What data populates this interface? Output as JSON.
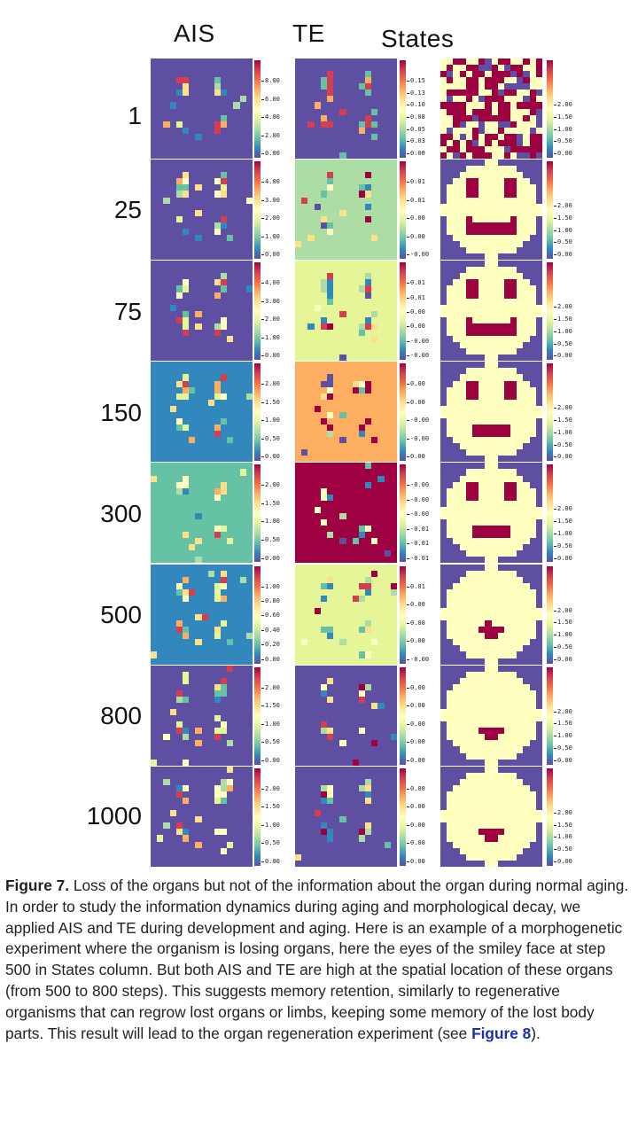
{
  "figure": {
    "column_headers": [
      "AIS",
      "TE",
      "States"
    ],
    "rows": [
      {
        "step": "1",
        "ais_ticks": [
          "8.00",
          "6.00",
          "4.00",
          "2.00",
          "0.00"
        ],
        "te_ticks": [
          "0.15",
          "0.13",
          "0.10",
          "0.08",
          "0.05",
          "0.03",
          "0.00"
        ],
        "states_ticks": [
          "2.00",
          "1.50",
          "1.00",
          "0.50",
          "0.00"
        ]
      },
      {
        "step": "25",
        "ais_ticks": [
          "4.00",
          "3.00",
          "2.00",
          "1.00",
          "0.00"
        ],
        "te_ticks": [
          "0.01",
          "0.01",
          "0.00",
          "0.00",
          "-0.00"
        ],
        "states_ticks": [
          "2.00",
          "1.50",
          "1.00",
          "0.50",
          "0.00"
        ]
      },
      {
        "step": "75",
        "ais_ticks": [
          "4.00",
          "3.00",
          "2.00",
          "1.00",
          "0.00"
        ],
        "te_ticks": [
          "0.01",
          "0.01",
          "0.00",
          "0.00",
          "-0.00",
          "-0.00"
        ],
        "states_ticks": [
          "2.00",
          "1.50",
          "1.00",
          "0.50",
          "0.00"
        ]
      },
      {
        "step": "150",
        "ais_ticks": [
          "2.00",
          "1.50",
          "1.00",
          "0.50",
          "0.00"
        ],
        "te_ticks": [
          "0.00",
          "0.00",
          "-0.00",
          "-0.00",
          "0.00"
        ],
        "states_ticks": [
          "2.00",
          "1.50",
          "1.00",
          "0.50",
          "0.00"
        ]
      },
      {
        "step": "300",
        "ais_ticks": [
          "2.00",
          "1.50",
          "1.00",
          "0.50",
          "0.00"
        ],
        "te_ticks": [
          "-0.00",
          "-0.00",
          "-0.00",
          "-0.01",
          "-0.01",
          "-0.01"
        ],
        "states_ticks": [
          "2.00",
          "1.50",
          "1.00",
          "0.50",
          "0.00"
        ]
      },
      {
        "step": "500",
        "ais_ticks": [
          "1.00",
          "0.80",
          "0.60",
          "0.40",
          "0.20",
          "0.00"
        ],
        "te_ticks": [
          "0.01",
          "0.00",
          "0.00",
          "0.00",
          "-0.00"
        ],
        "states_ticks": [
          "2.00",
          "1.50",
          "1.00",
          "0.50",
          "0.00"
        ]
      },
      {
        "step": "800",
        "ais_ticks": [
          "2.00",
          "1.50",
          "1.00",
          "0.50",
          "0.00"
        ],
        "te_ticks": [
          "0.00",
          "0.00",
          "0.00",
          "0.00",
          "0.00"
        ],
        "states_ticks": [
          "2.00",
          "1.50",
          "1.00",
          "0.50",
          "0.00"
        ]
      },
      {
        "step": "1000",
        "ais_ticks": [
          "2.00",
          "1.50",
          "1.00",
          "0.50",
          "0.00"
        ],
        "te_ticks": [
          "0.00",
          "0.00",
          "0.00",
          "0.00",
          "0.00"
        ],
        "states_ticks": [
          "2.00",
          "1.50",
          "1.00",
          "0.50",
          "0.00"
        ]
      }
    ]
  },
  "caption": {
    "label": "Figure 7.",
    "text": " Loss of the organs but not of the information about the organ during normal aging. In order to study the information dynamics during aging and morphological decay, we applied AIS and TE during development and aging. Here is an example of a morphogenetic experiment where the organism is losing organs, here the eyes of the smiley face at step 500 in States column. But both AIS and TE are high at the spatial location of these organs (from 500 to 800 steps). This suggests memory retention, similarly to regenerative organisms that can regrow lost organs or limbs, keeping some memory of the lost body parts. This result will lead to the organ regeneration experiment (see ",
    "ref": "Figure 8",
    "end": ")."
  },
  "colors": {
    "violet": "#5e4fa2",
    "blue": "#3288bd",
    "teal": "#66c2a5",
    "green": "#abdda4",
    "lime": "#e6f598",
    "cream": "#ffffbf",
    "peach": "#fee08b",
    "orange": "#fdae61",
    "red_orange": "#f46d43",
    "red": "#d53e4f",
    "crimson": "#9e0142"
  }
}
